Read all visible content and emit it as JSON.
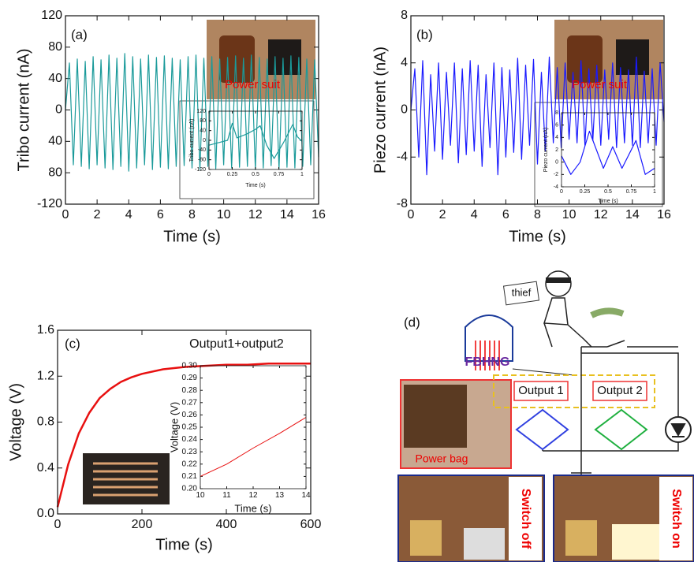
{
  "chart_data": [
    {
      "type": "line",
      "panel_label": "(a)",
      "annotation": "Power suit",
      "xlabel": "Time (s)",
      "ylabel": "Tribo current (nA)",
      "xlim": [
        0,
        16
      ],
      "xticks": [
        0,
        2,
        4,
        6,
        8,
        10,
        12,
        14,
        16
      ],
      "ylim": [
        -120,
        120
      ],
      "yticks": [
        -120,
        {
          "value": -80,
          "label": "80"
        },
        {
          "value": -40,
          "label": "40"
        },
        0,
        40,
        80,
        120
      ],
      "series": [
        {
          "color": "#1a9a9a",
          "x": [
            0,
            0.25,
            0.5,
            0.75,
            1,
            1.25,
            1.5,
            1.75,
            2,
            2.25,
            2.5,
            2.75,
            3,
            3.25,
            3.5,
            3.75,
            4,
            4.25,
            4.5,
            4.75,
            5,
            5.25,
            5.5,
            5.75,
            6,
            6.25,
            6.5,
            6.75,
            7,
            7.25,
            7.5,
            7.75,
            8,
            8.25,
            8.5,
            8.75,
            9,
            9.25,
            9.5,
            9.75,
            10,
            10.25,
            10.5,
            10.75,
            11,
            11.25,
            11.5,
            11.75,
            12,
            12.25,
            12.5,
            12.75,
            13,
            13.25,
            13.5,
            13.75,
            14,
            14.25,
            14.5,
            14.75,
            15,
            15.25,
            15.5,
            15.75,
            16
          ],
          "values": [
            0,
            60,
            -70,
            65,
            -72,
            62,
            -75,
            68,
            -70,
            64,
            -74,
            70,
            -76,
            66,
            -72,
            72,
            -78,
            68,
            -74,
            65,
            -70,
            70,
            -76,
            67,
            -73,
            69,
            -75,
            66,
            -72,
            64,
            -71,
            68,
            -74,
            70,
            -76,
            66,
            -72,
            68,
            -75,
            65,
            -70,
            67,
            -74,
            69,
            -73,
            66,
            -72,
            70,
            -76,
            67,
            -74,
            65,
            -71,
            68,
            -75,
            66,
            -73,
            69,
            -74,
            67,
            -72,
            65,
            -70,
            64,
            -60
          ]
        }
      ]
    },
    {
      "type": "line",
      "xlabel": "Time (s)",
      "ylabel": "Tribo current (nA)",
      "xlim": [
        0,
        1
      ],
      "xticks": [
        0,
        0.25,
        0.5,
        0.75,
        1
      ],
      "ylim": [
        -120,
        120
      ],
      "yticks": [
        -120,
        -80,
        -40,
        0,
        40,
        80,
        120
      ],
      "series": [
        {
          "color": "#1a9a9a",
          "x": [
            0,
            0.1,
            0.2,
            0.25,
            0.3,
            0.4,
            0.5,
            0.55,
            0.62,
            0.7,
            0.8,
            0.9,
            0.95,
            1
          ],
          "values": [
            -20,
            -10,
            0,
            70,
            10,
            25,
            45,
            60,
            -20,
            -75,
            -10,
            65,
            15,
            -5
          ]
        }
      ]
    },
    {
      "type": "line",
      "panel_label": "(b)",
      "annotation": "Power suit",
      "xlabel": "Time (s)",
      "ylabel": "Piezo current (nA)",
      "xlim": [
        0,
        16
      ],
      "xticks": [
        0,
        2,
        4,
        6,
        8,
        10,
        12,
        14,
        16
      ],
      "ylim": [
        -8,
        8
      ],
      "yticks": [
        -8,
        -4,
        0,
        4,
        8
      ],
      "series": [
        {
          "color": "#1a1aff",
          "x": [
            0,
            0.25,
            0.5,
            0.75,
            1,
            1.25,
            1.5,
            1.75,
            2,
            2.25,
            2.5,
            2.75,
            3,
            3.25,
            3.5,
            3.75,
            4,
            4.25,
            4.5,
            4.75,
            5,
            5.25,
            5.5,
            5.75,
            6,
            6.25,
            6.5,
            6.75,
            7,
            7.25,
            7.5,
            7.75,
            8,
            8.25,
            8.5,
            8.75,
            9,
            9.25,
            9.5,
            9.75,
            10,
            10.25,
            10.5,
            10.75,
            11,
            11.25,
            11.5,
            11.75,
            12,
            12.25,
            12.5,
            12.75,
            13,
            13.25,
            13.5,
            13.75,
            14,
            14.25,
            14.5,
            14.75,
            15,
            15.25,
            15.5,
            15.75,
            16
          ],
          "values": [
            0,
            3.5,
            -4,
            4.2,
            -5.5,
            3,
            -3.5,
            4,
            -4.2,
            3.2,
            -3,
            4,
            -4.5,
            3.5,
            -3.8,
            4.2,
            -3.5,
            3.8,
            -4.8,
            3,
            -3.2,
            4,
            -5.5,
            3.6,
            -4,
            3.4,
            -3.6,
            4.4,
            -4.2,
            3.8,
            -3,
            4.3,
            -4.6,
            3.2,
            -3.5,
            4.5,
            -2.8,
            3.6,
            -3.2,
            4,
            -2.5,
            3.2,
            -2.8,
            4.2,
            -3,
            3.5,
            -2.6,
            3.8,
            -3,
            3.4,
            -2.5,
            4,
            -3.2,
            3.6,
            -2.8,
            3.4,
            -3,
            4.5,
            -3.2,
            3.3,
            -2.8,
            3.5,
            -3,
            4,
            -1
          ]
        }
      ]
    },
    {
      "type": "line",
      "xlabel": "Time (s)",
      "ylabel": "Piezo current (nA)",
      "xlim": [
        0,
        1
      ],
      "xticks": [
        0,
        0.25,
        0.5,
        0.75,
        1
      ],
      "ylim": [
        -4,
        8
      ],
      "yticks": [
        -4,
        -2,
        0,
        2,
        4,
        6,
        8
      ],
      "series": [
        {
          "color": "#1a1aff",
          "x": [
            0,
            0.1,
            0.2,
            0.3,
            0.45,
            0.55,
            0.65,
            0.8,
            0.9,
            1
          ],
          "values": [
            1,
            -2,
            0,
            5,
            -1,
            2.5,
            -1,
            3.5,
            -2,
            -1
          ]
        }
      ]
    },
    {
      "type": "line",
      "panel_label": "(c)",
      "annotation": "Output1+output2",
      "xlabel": "Time (s)",
      "ylabel": "Voltage (V)",
      "xlim": [
        0,
        600
      ],
      "xticks": [
        0,
        200,
        400,
        600
      ],
      "ylim": [
        0,
        1.6
      ],
      "yticks": [
        {
          "value": 0,
          "label": "0.0"
        },
        0.4,
        0.8,
        1.2,
        1.6
      ],
      "series": [
        {
          "color": "#e81010",
          "x": [
            0,
            25,
            50,
            75,
            100,
            125,
            150,
            175,
            200,
            250,
            300,
            350,
            400,
            450,
            500,
            550,
            600
          ],
          "values": [
            0.06,
            0.43,
            0.7,
            0.88,
            1.01,
            1.09,
            1.15,
            1.19,
            1.22,
            1.26,
            1.28,
            1.29,
            1.3,
            1.3,
            1.31,
            1.31,
            1.31
          ]
        }
      ]
    },
    {
      "type": "line",
      "xlabel": "Time (s)",
      "ylabel": "Voltage (V)",
      "xlim": [
        10,
        14
      ],
      "xticks": [
        10,
        11,
        12,
        13,
        14
      ],
      "ylim": [
        0.2,
        0.3
      ],
      "yticks": [
        {
          "value": 0.2,
          "label": "0.20"
        },
        {
          "value": 0.21,
          "label": "0.21"
        },
        {
          "value": 0.22,
          "label": "0.22"
        },
        {
          "value": 0.23,
          "label": "0.23"
        },
        {
          "value": 0.24,
          "label": "0.24"
        },
        {
          "value": 0.25,
          "label": "0.25"
        },
        {
          "value": 0.26,
          "label": "0.26"
        },
        {
          "value": 0.27,
          "label": "0.27"
        },
        {
          "value": 0.28,
          "label": "0.28"
        },
        {
          "value": 0.29,
          "label": "0.29"
        },
        {
          "value": 0.3,
          "label": "0.30"
        }
      ],
      "series": [
        {
          "color": "#e81010",
          "x": [
            10,
            11,
            12,
            13,
            14
          ],
          "values": [
            0.21,
            0.22,
            0.233,
            0.245,
            0.258
          ]
        }
      ]
    }
  ],
  "diagram": {
    "panel_label": "(d)",
    "thief": "thief",
    "generator": "FBHNG",
    "outputs": [
      "Output 1",
      "Output 2"
    ],
    "bag": "Power bag",
    "photos": [
      "Switch off",
      "Switch on"
    ]
  }
}
